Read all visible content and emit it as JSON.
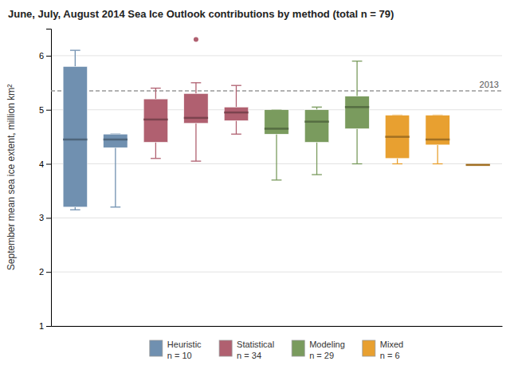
{
  "chart_data": {
    "type": "box",
    "title": "June, July, August 2014 Sea Ice Outlook contributions by method (total n = 79)",
    "ylabel": "September mean sea ice extent, million km²",
    "categories": [
      null,
      null,
      null,
      null,
      null,
      null,
      null,
      null,
      null,
      null,
      null
    ],
    "ylim": [
      1,
      6.5
    ],
    "yticks": [
      1,
      2,
      3,
      4,
      5,
      6
    ],
    "grid": true,
    "tick_labels": "y",
    "legend": "bottom",
    "reference_line": {
      "value": 5.35,
      "label": "2013"
    },
    "legend_entries": [
      {
        "label": "Heuristic\nn = 10",
        "color": "#7090b0"
      },
      {
        "label": "Statistical\nn = 34",
        "color": "#b06070"
      },
      {
        "label": "Modeling\nn = 29",
        "color": "#7a9b5e"
      },
      {
        "label": "Mixed\nn = 6",
        "color": "#e8a030"
      }
    ],
    "boxes": [
      {
        "color": "#7090b0",
        "whislo": 3.15,
        "q1": 3.2,
        "med": 4.45,
        "q3": 5.8,
        "whishi": 6.1,
        "fliers": []
      },
      {
        "color": "#7090b0",
        "whislo": 3.2,
        "q1": 4.3,
        "med": 4.45,
        "q3": 4.55,
        "whishi": 4.55,
        "fliers": []
      },
      {
        "color": "#b06070",
        "whislo": 4.1,
        "q1": 4.4,
        "med": 4.82,
        "q3": 5.2,
        "whishi": 5.4,
        "fliers": []
      },
      {
        "color": "#b06070",
        "whislo": 4.05,
        "q1": 4.75,
        "med": 4.85,
        "q3": 5.3,
        "whishi": 5.5,
        "fliers": [
          6.3
        ]
      },
      {
        "color": "#b06070",
        "whislo": 4.55,
        "q1": 4.8,
        "med": 4.95,
        "q3": 5.05,
        "whishi": 5.45,
        "fliers": []
      },
      {
        "color": "#7a9b5e",
        "whislo": 3.7,
        "q1": 4.55,
        "med": 4.65,
        "q3": 5.0,
        "whishi": 5.0,
        "fliers": []
      },
      {
        "color": "#7a9b5e",
        "whislo": 3.8,
        "q1": 4.4,
        "med": 4.78,
        "q3": 5.0,
        "whishi": 5.05,
        "fliers": []
      },
      {
        "color": "#7a9b5e",
        "whislo": 4.0,
        "q1": 4.65,
        "med": 5.05,
        "q3": 5.25,
        "whishi": 5.9,
        "fliers": []
      },
      {
        "color": "#e8a030",
        "whislo": 4.0,
        "q1": 4.1,
        "med": 4.5,
        "q3": 4.9,
        "whishi": 4.9,
        "fliers": []
      },
      {
        "color": "#e8a030",
        "whislo": 4.0,
        "q1": 4.35,
        "med": 4.45,
        "q3": 4.9,
        "whishi": 4.9,
        "fliers": []
      },
      {
        "color": "#e8a030",
        "whislo": 3.98,
        "q1": 3.98,
        "med": 3.98,
        "q3": 3.98,
        "whishi": 3.98,
        "fliers": []
      }
    ]
  }
}
